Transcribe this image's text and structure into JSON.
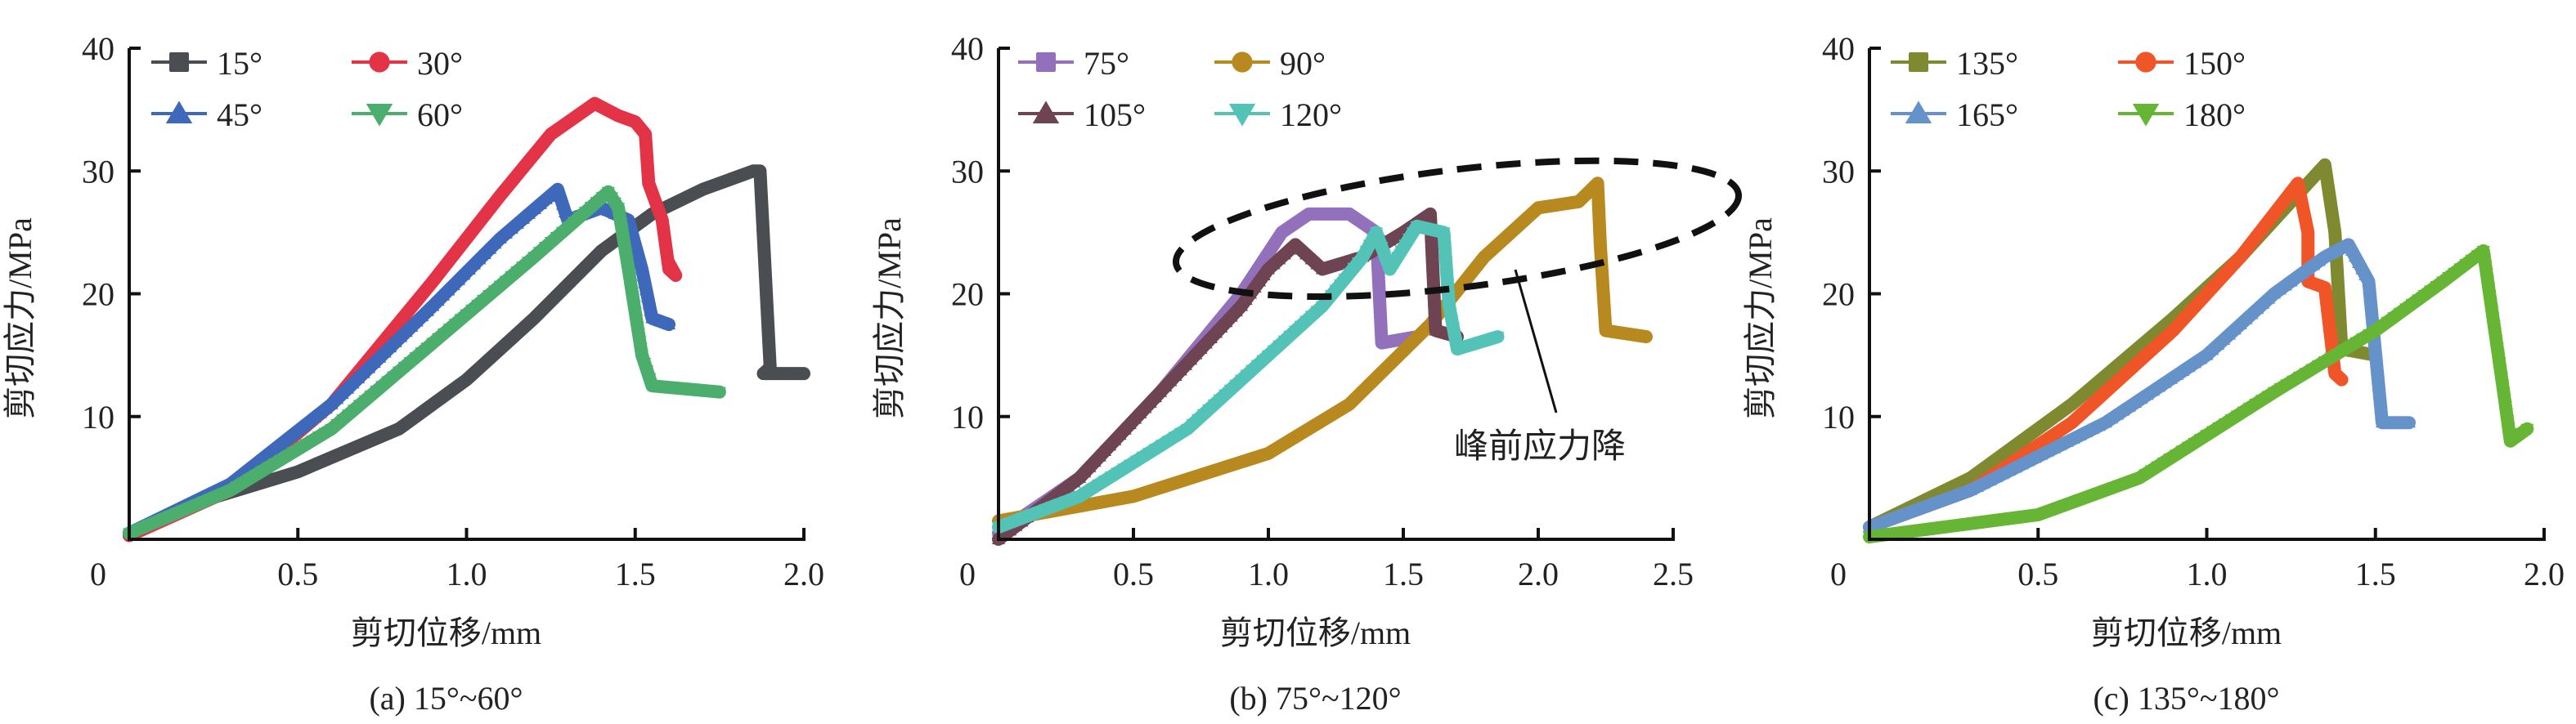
{
  "chart_data": [
    {
      "type": "line",
      "caption": "(a) 15°~60°",
      "xlabel": "剪切位移/mm",
      "ylabel": "剪切应力/MPa",
      "xlim": [
        0,
        2.0
      ],
      "ylim": [
        0,
        40
      ],
      "xticks": [
        "0",
        "0.5",
        "1.0",
        "1.5",
        "2.0"
      ],
      "xtick_values": [
        0,
        0.5,
        1.0,
        1.5,
        2.0
      ],
      "yticks": [
        "10",
        "20",
        "30",
        "40"
      ],
      "ytick_values": [
        10,
        20,
        30,
        40
      ],
      "legend_position": "top-left",
      "grid": false,
      "series": [
        {
          "name": "15°",
          "color": "#4A4D52",
          "marker": "square",
          "x": [
            0.0,
            0.2,
            0.5,
            0.8,
            1.0,
            1.2,
            1.4,
            1.55,
            1.7,
            1.85,
            1.87,
            1.9,
            1.88,
            2.0
          ],
          "y": [
            0.5,
            3,
            5.5,
            9,
            13,
            18,
            23.5,
            26.5,
            28.5,
            30,
            30,
            14,
            13.5,
            13.5
          ]
        },
        {
          "name": "30°",
          "color": "#E33347",
          "marker": "circle",
          "x": [
            0.0,
            0.3,
            0.6,
            0.9,
            1.1,
            1.25,
            1.38,
            1.45,
            1.5,
            1.53,
            1.54,
            1.56,
            1.58,
            1.6,
            1.62,
            1.6
          ],
          "y": [
            0.3,
            4,
            11,
            21,
            28,
            33,
            35.5,
            34.5,
            34,
            33,
            29,
            27.5,
            26,
            22,
            21.5,
            22.5
          ]
        },
        {
          "name": "45°",
          "color": "#3E68BA",
          "marker": "triangle-up",
          "x": [
            0.0,
            0.3,
            0.6,
            0.9,
            1.1,
            1.27,
            1.3,
            1.4,
            1.48,
            1.52,
            1.55,
            1.6
          ],
          "y": [
            0.5,
            4.5,
            11,
            19,
            24.5,
            28.5,
            26,
            27,
            26,
            22,
            18,
            17.5
          ]
        },
        {
          "name": "60°",
          "color": "#4BAE6C",
          "marker": "triangle-down",
          "x": [
            0.0,
            0.3,
            0.6,
            0.9,
            1.2,
            1.42,
            1.45,
            1.48,
            1.52,
            1.55,
            1.75
          ],
          "y": [
            0.5,
            4,
            9,
            16,
            23,
            28.3,
            27,
            22,
            15,
            12.5,
            12
          ]
        }
      ]
    },
    {
      "type": "line",
      "caption": "(b) 75°~120°",
      "xlabel": "剪切位移/mm",
      "ylabel": "剪切应力/MPa",
      "xlim": [
        0,
        2.5
      ],
      "ylim": [
        0,
        40
      ],
      "xticks": [
        "0",
        "0.5",
        "1.0",
        "1.5",
        "2.0",
        "2.5"
      ],
      "xtick_values": [
        0,
        0.5,
        1.0,
        1.5,
        2.0,
        2.5
      ],
      "yticks": [
        "10",
        "20",
        "30",
        "40"
      ],
      "ytick_values": [
        10,
        20,
        30,
        40
      ],
      "legend_position": "top-left",
      "grid": false,
      "annotation": {
        "text": "峰前应力降",
        "ellipse_center": [
          1.7,
          25.3
        ],
        "ellipse_radii": [
          1.05,
          4.8
        ]
      },
      "series": [
        {
          "name": "75°",
          "color": "#9370BB",
          "marker": "square",
          "x": [
            0.0,
            0.3,
            0.6,
            0.9,
            1.05,
            1.15,
            1.3,
            1.4,
            1.42,
            1.55
          ],
          "y": [
            0.5,
            5,
            12,
            20,
            25,
            26.5,
            26.5,
            25,
            16,
            16.5
          ]
        },
        {
          "name": "90°",
          "color": "#B8891F",
          "marker": "circle",
          "x": [
            0.0,
            0.5,
            1.0,
            1.3,
            1.6,
            1.8,
            2.0,
            2.15,
            2.22,
            2.23,
            2.25,
            2.4
          ],
          "y": [
            1.5,
            3.5,
            7,
            11,
            17.5,
            23,
            27,
            27.5,
            29,
            24,
            17,
            16.5
          ]
        },
        {
          "name": "105°",
          "color": "#6E4452",
          "marker": "triangle-up",
          "x": [
            0.0,
            0.3,
            0.6,
            0.9,
            1.0,
            1.1,
            1.2,
            1.35,
            1.5,
            1.6,
            1.62,
            1.7
          ],
          "y": [
            0,
            5,
            12,
            19,
            22,
            24,
            22,
            23,
            25,
            26.5,
            17,
            16.5
          ]
        },
        {
          "name": "120°",
          "color": "#52C3B6",
          "marker": "triangle-down",
          "x": [
            0.0,
            0.3,
            0.7,
            1.0,
            1.2,
            1.35,
            1.4,
            1.45,
            1.55,
            1.65,
            1.67,
            1.7,
            1.85
          ],
          "y": [
            1,
            3.5,
            9,
            15,
            19,
            23,
            25,
            22,
            25.5,
            25,
            19,
            15.5,
            16.5
          ]
        }
      ]
    },
    {
      "type": "line",
      "caption": "(c) 135°~180°",
      "xlabel": "剪切位移/mm",
      "ylabel": "剪切应力/MPa",
      "xlim": [
        0,
        2.0
      ],
      "ylim": [
        0,
        40
      ],
      "xticks": [
        "0",
        "0.5",
        "1.0",
        "1.5",
        "2.0"
      ],
      "xtick_values": [
        0,
        0.5,
        1.0,
        1.5,
        2.0
      ],
      "yticks": [
        "10",
        "20",
        "30",
        "40"
      ],
      "ytick_values": [
        10,
        20,
        30,
        40
      ],
      "legend_position": "top-left",
      "grid": false,
      "series": [
        {
          "name": "135°",
          "color": "#7F8A30",
          "marker": "square",
          "x": [
            0.0,
            0.3,
            0.6,
            0.9,
            1.1,
            1.35,
            1.38,
            1.4,
            1.5
          ],
          "y": [
            1,
            5,
            11,
            18,
            23,
            30.5,
            25,
            15.5,
            15
          ]
        },
        {
          "name": "150°",
          "color": "#F05528",
          "marker": "circle",
          "x": [
            0.0,
            0.3,
            0.6,
            0.9,
            1.1,
            1.27,
            1.3,
            1.3,
            1.35,
            1.38,
            1.4
          ],
          "y": [
            1,
            4,
            9.5,
            17,
            23,
            29,
            25,
            21,
            20.5,
            13.5,
            13
          ]
        },
        {
          "name": "165°",
          "color": "#6592C8",
          "marker": "triangle-up",
          "x": [
            0.0,
            0.3,
            0.7,
            1.0,
            1.2,
            1.35,
            1.42,
            1.48,
            1.52,
            1.6
          ],
          "y": [
            1,
            4,
            9.5,
            15,
            20,
            23,
            24,
            21,
            9.5,
            9.5
          ]
        },
        {
          "name": "180°",
          "color": "#66B535",
          "marker": "triangle-down",
          "x": [
            0.0,
            0.5,
            0.8,
            1.2,
            1.5,
            1.7,
            1.82,
            1.88,
            1.9,
            1.95
          ],
          "y": [
            0.2,
            2,
            5,
            12,
            17,
            21,
            23.5,
            12,
            8,
            9
          ]
        }
      ]
    }
  ]
}
